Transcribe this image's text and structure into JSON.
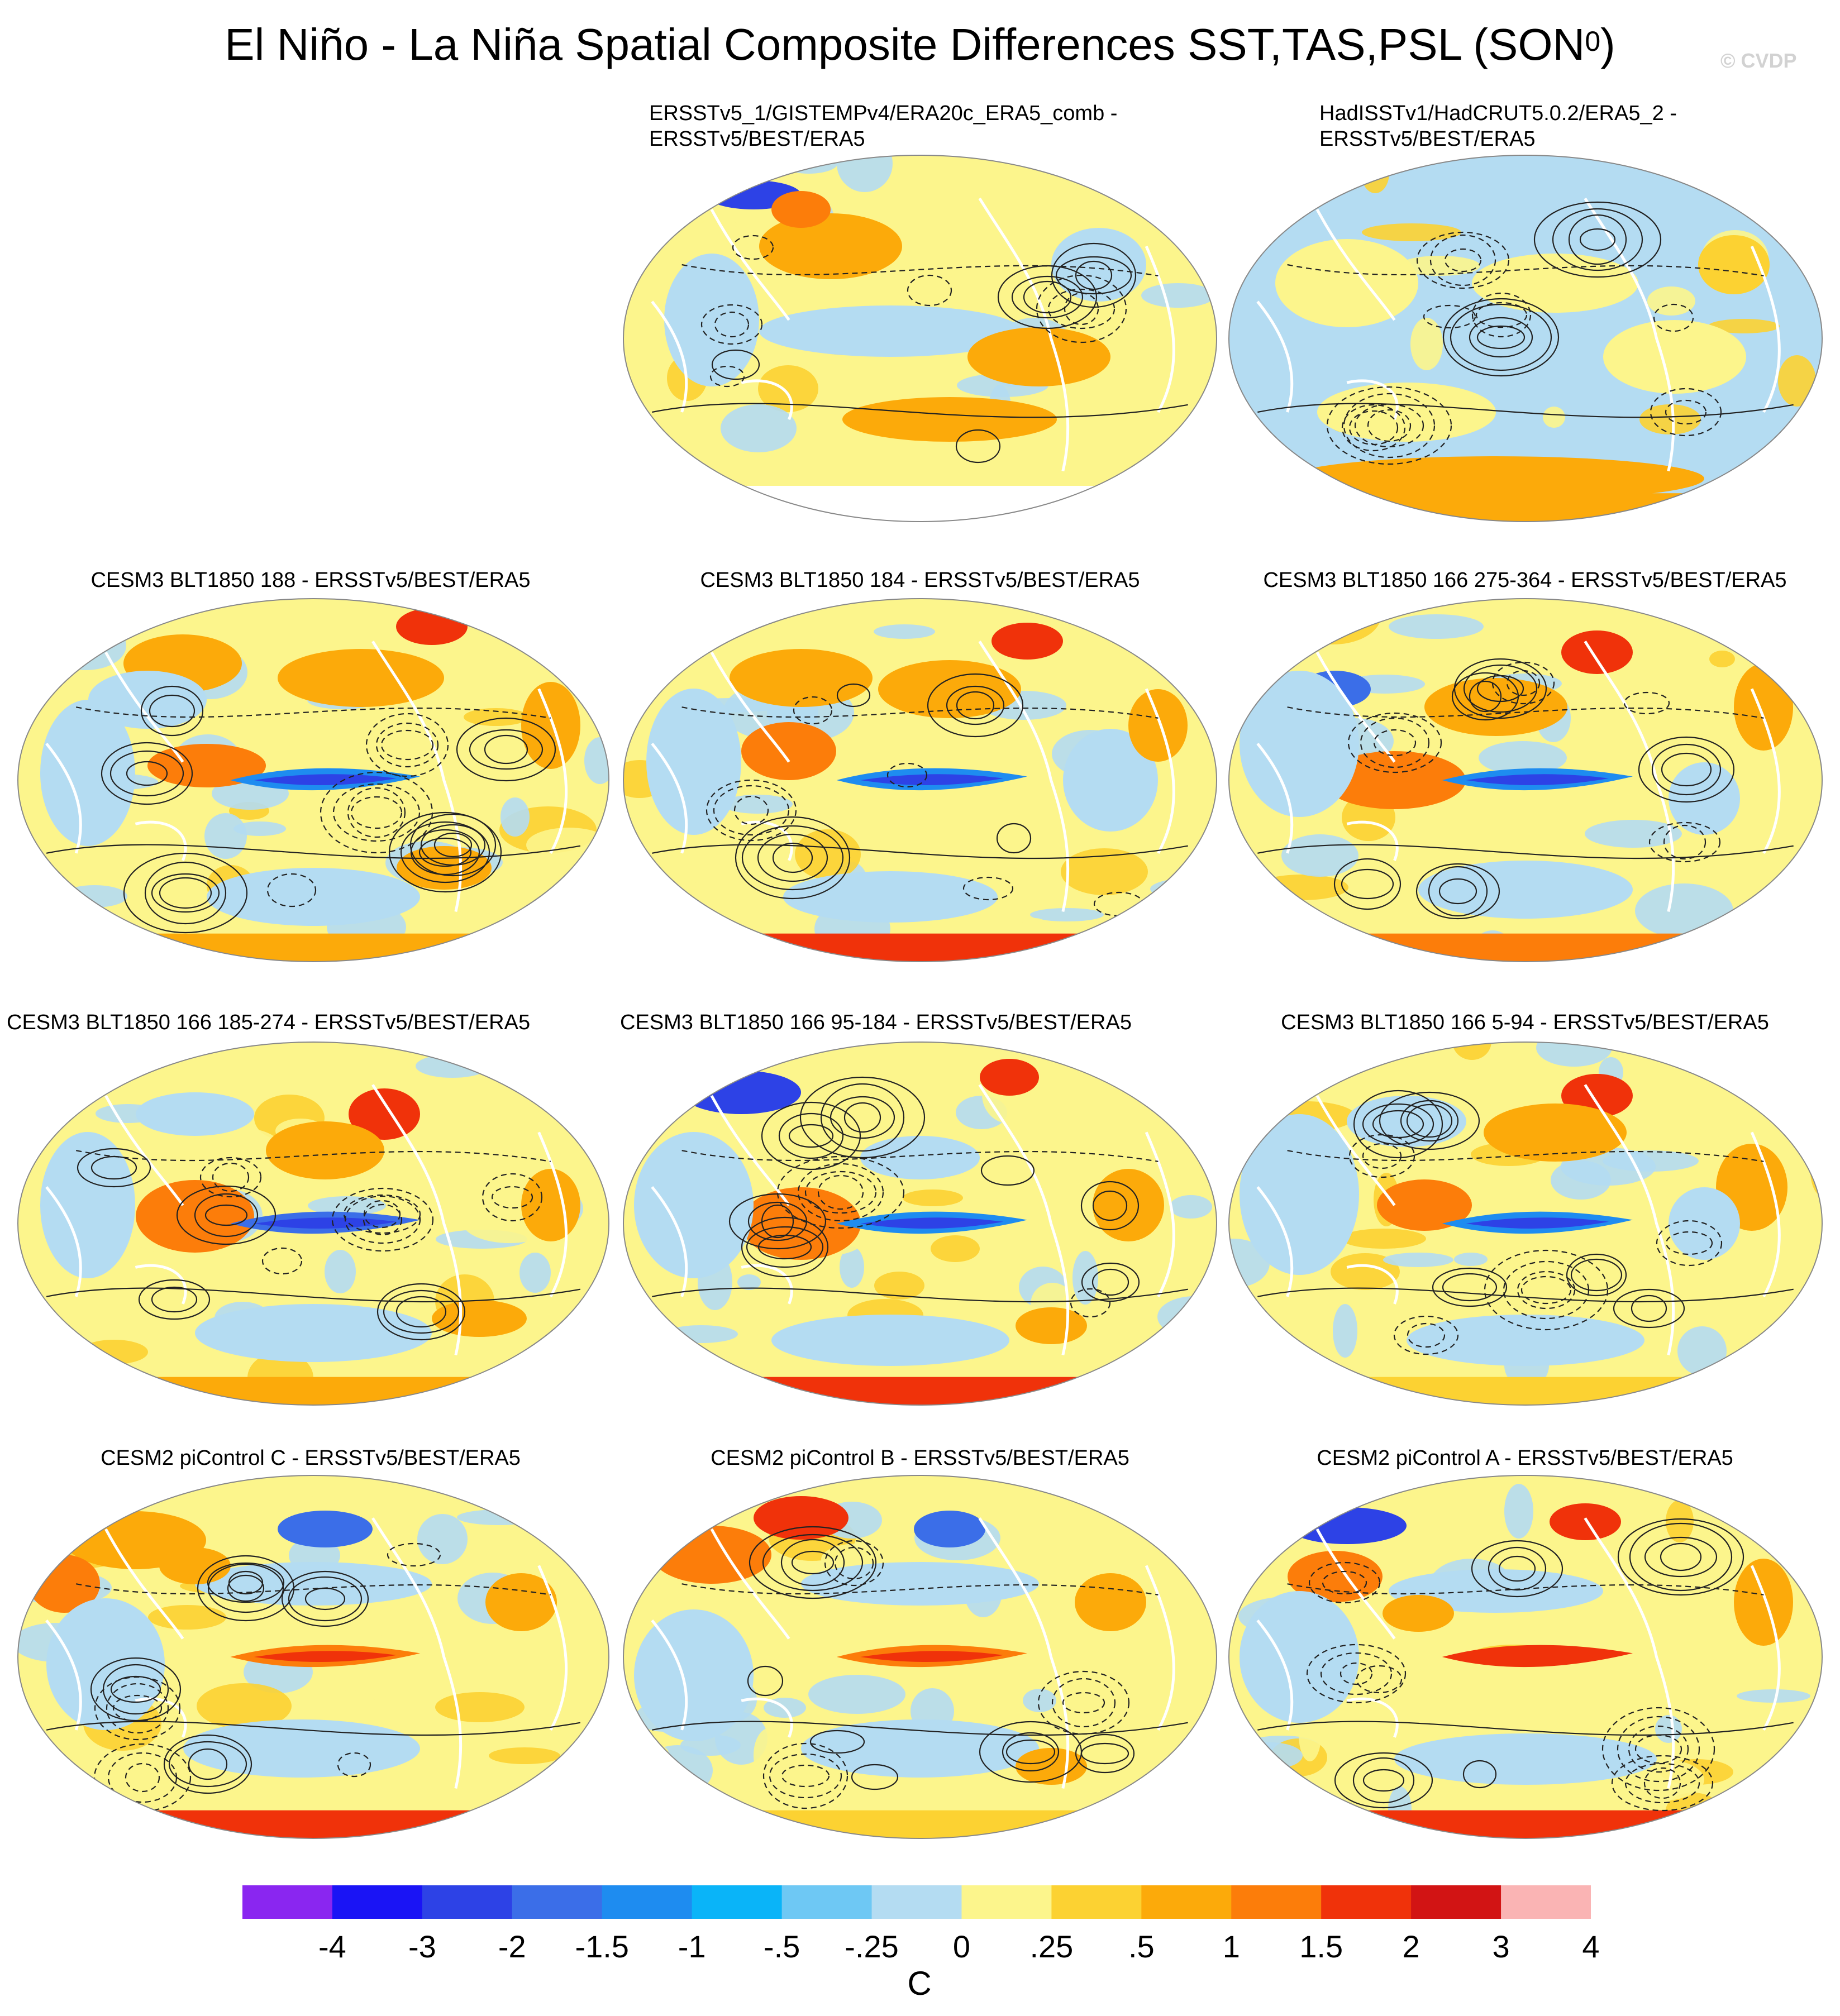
{
  "title": {
    "main": "El Niño - La Niña Spatial Composite Differences SST,TAS,PSL (SON",
    "superscript": "0",
    "suffix": ")"
  },
  "copyright": "© CVDP",
  "panels": [
    {
      "title_lines": [
        "ERSSTv5_1/GISTEMPv4/ERA20c_ERA5_comb -",
        "ERSSTv5/BEST/ERA5"
      ]
    },
    {
      "title_lines": [
        "HadISSTv1/HadCRUT5.0.2/ERA5_2 -",
        "ERSSTv5/BEST/ERA5"
      ]
    },
    {
      "title_lines": [
        "CESM3 BLT1850 188 - ERSSTv5/BEST/ERA5"
      ]
    },
    {
      "title_lines": [
        "CESM3 BLT1850 184 - ERSSTv5/BEST/ERA5"
      ]
    },
    {
      "title_lines": [
        "CESM3 BLT1850 166 275-364 - ERSSTv5/BEST/ERA5"
      ]
    },
    {
      "title_lines": [
        "CESM3 BLT1850 166 185-274 - ERSSTv5/BEST/ERA5"
      ]
    },
    {
      "title_lines": [
        "CESM3 BLT1850 166 95-184 - ERSSTv5/BEST/ERA5"
      ]
    },
    {
      "title_lines": [
        "CESM3 BLT1850 166 5-94 - ERSSTv5/BEST/ERA5"
      ]
    },
    {
      "title_lines": [
        "CESM2 piControl C - ERSSTv5/BEST/ERA5"
      ]
    },
    {
      "title_lines": [
        "CESM2 piControl B - ERSSTv5/BEST/ERA5"
      ]
    },
    {
      "title_lines": [
        "CESM2 piControl A - ERSSTv5/BEST/ERA5"
      ]
    }
  ],
  "colorbar": {
    "units": "C",
    "tick_labels": [
      "-4",
      "-3",
      "-2",
      "-1.5",
      "-1",
      "-.5",
      "-.25",
      "0",
      ".25",
      ".5",
      "1",
      "1.5",
      "2",
      "3",
      "4"
    ],
    "colors": [
      "#8a26f0",
      "#1a14f5",
      "#2d42e6",
      "#3b6ee8",
      "#1e8cf0",
      "#0ab4f8",
      "#6ec8f4",
      "#b4dcf2",
      "#fcf58c",
      "#fcd232",
      "#fcaa0a",
      "#fc7d0a",
      "#f0320a",
      "#d21414",
      "#fab4b4"
    ]
  },
  "chart_data": {
    "type": "heatmap",
    "description_fields": {
      "variables": [
        "SST",
        "TAS",
        "PSL"
      ],
      "season": "SON",
      "contour_overlay": "PSL",
      "fill": "SST/TAS difference"
    },
    "color_levels": [
      -4,
      -3,
      -2,
      -1.5,
      -1,
      -0.5,
      -0.25,
      0,
      0.25,
      0.5,
      1,
      1.5,
      2,
      3,
      4
    ],
    "panels": [
      {
        "name": "ERSSTv5_1/GISTEMPv4/ERA20c_ERA5_comb - ERSSTv5/BEST/ERA5"
      },
      {
        "name": "HadISSTv1/HadCRUT5.0.2/ERA5_2 - ERSSTv5/BEST/ERA5"
      },
      {
        "name": "CESM3 BLT1850 188 - ERSSTv5/BEST/ERA5"
      },
      {
        "name": "CESM3 BLT1850 184 - ERSSTv5/BEST/ERA5"
      },
      {
        "name": "CESM3 BLT1850 166 275-364 - ERSSTv5/BEST/ERA5"
      },
      {
        "name": "CESM3 BLT1850 166 185-274 - ERSSTv5/BEST/ERA5"
      },
      {
        "name": "CESM3 BLT1850 166 95-184 - ERSSTv5/BEST/ERA5"
      },
      {
        "name": "CESM3 BLT1850 166 5-94 - ERSSTv5/BEST/ERA5"
      },
      {
        "name": "CESM2 piControl C - ERSSTv5/BEST/ERA5"
      },
      {
        "name": "CESM2 piControl B - ERSSTv5/BEST/ERA5"
      },
      {
        "name": "CESM2 piControl A - ERSSTv5/BEST/ERA5"
      }
    ]
  }
}
